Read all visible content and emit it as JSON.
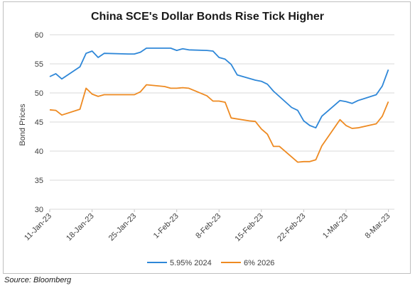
{
  "source_note": "Source: Bloomberg",
  "chart_data": {
    "type": "line",
    "title": "China SCE's Dollar Bonds Rise Tick Higher",
    "ylabel": "Bond Prices",
    "xlabel": "",
    "ylim": [
      30,
      60
    ],
    "yticks": [
      30,
      35,
      40,
      45,
      50,
      55,
      60
    ],
    "xlim": [
      "2023-01-11",
      "2023-03-09"
    ],
    "xticks": [
      {
        "date": "2023-01-11",
        "label": "11-Jan-23"
      },
      {
        "date": "2023-01-18",
        "label": "18-Jan-23"
      },
      {
        "date": "2023-01-25",
        "label": "25-Jan-23"
      },
      {
        "date": "2023-02-01",
        "label": "1-Feb-23"
      },
      {
        "date": "2023-02-08",
        "label": "8-Feb-23"
      },
      {
        "date": "2023-02-15",
        "label": "15-Feb-23"
      },
      {
        "date": "2023-02-22",
        "label": "22-Feb-23"
      },
      {
        "date": "2023-03-01",
        "label": "1-Mar-23"
      },
      {
        "date": "2023-03-08",
        "label": "8-Mar-23"
      }
    ],
    "grid": true,
    "legend_position": "bottom",
    "series": [
      {
        "name": "5.95% 2024",
        "color": "#2e87d8",
        "points": [
          [
            "2023-01-11",
            52.8
          ],
          [
            "2023-01-12",
            53.3
          ],
          [
            "2023-01-13",
            52.4
          ],
          [
            "2023-01-16",
            54.5
          ],
          [
            "2023-01-17",
            56.8
          ],
          [
            "2023-01-18",
            57.2
          ],
          [
            "2023-01-19",
            56.1
          ],
          [
            "2023-01-20",
            56.8
          ],
          [
            "2023-01-24",
            56.7
          ],
          [
            "2023-01-25",
            56.7
          ],
          [
            "2023-01-26",
            57.0
          ],
          [
            "2023-01-27",
            57.7
          ],
          [
            "2023-01-30",
            57.7
          ],
          [
            "2023-01-31",
            57.7
          ],
          [
            "2023-02-01",
            57.3
          ],
          [
            "2023-02-02",
            57.6
          ],
          [
            "2023-02-03",
            57.4
          ],
          [
            "2023-02-06",
            57.3
          ],
          [
            "2023-02-07",
            57.2
          ],
          [
            "2023-02-08",
            56.1
          ],
          [
            "2023-02-09",
            55.8
          ],
          [
            "2023-02-10",
            54.9
          ],
          [
            "2023-02-11",
            53.1
          ],
          [
            "2023-02-14",
            52.2
          ],
          [
            "2023-02-15",
            52.0
          ],
          [
            "2023-02-16",
            51.5
          ],
          [
            "2023-02-17",
            50.3
          ],
          [
            "2023-02-20",
            47.5
          ],
          [
            "2023-02-21",
            47.0
          ],
          [
            "2023-02-22",
            45.2
          ],
          [
            "2023-02-23",
            44.4
          ],
          [
            "2023-02-24",
            44.0
          ],
          [
            "2023-02-25",
            46.0
          ],
          [
            "2023-02-28",
            48.7
          ],
          [
            "2023-03-01",
            48.5
          ],
          [
            "2023-03-02",
            48.2
          ],
          [
            "2023-03-03",
            48.7
          ],
          [
            "2023-03-06",
            49.7
          ],
          [
            "2023-03-07",
            51.2
          ],
          [
            "2023-03-08",
            54.0
          ]
        ]
      },
      {
        "name": "6% 2026",
        "color": "#ee8a21",
        "points": [
          [
            "2023-01-11",
            47.1
          ],
          [
            "2023-01-12",
            47.0
          ],
          [
            "2023-01-13",
            46.2
          ],
          [
            "2023-01-16",
            47.2
          ],
          [
            "2023-01-17",
            50.8
          ],
          [
            "2023-01-18",
            49.8
          ],
          [
            "2023-01-19",
            49.4
          ],
          [
            "2023-01-20",
            49.7
          ],
          [
            "2023-01-24",
            49.7
          ],
          [
            "2023-01-25",
            49.7
          ],
          [
            "2023-01-26",
            50.2
          ],
          [
            "2023-01-27",
            51.4
          ],
          [
            "2023-01-30",
            51.1
          ],
          [
            "2023-01-31",
            50.8
          ],
          [
            "2023-02-01",
            50.8
          ],
          [
            "2023-02-02",
            50.9
          ],
          [
            "2023-02-03",
            50.8
          ],
          [
            "2023-02-06",
            49.5
          ],
          [
            "2023-02-07",
            48.6
          ],
          [
            "2023-02-08",
            48.6
          ],
          [
            "2023-02-09",
            48.4
          ],
          [
            "2023-02-10",
            45.7
          ],
          [
            "2023-02-13",
            45.2
          ],
          [
            "2023-02-14",
            45.1
          ],
          [
            "2023-02-15",
            43.8
          ],
          [
            "2023-02-16",
            42.9
          ],
          [
            "2023-02-17",
            40.8
          ],
          [
            "2023-02-18",
            40.8
          ],
          [
            "2023-02-21",
            38.1
          ],
          [
            "2023-02-22",
            38.2
          ],
          [
            "2023-02-23",
            38.2
          ],
          [
            "2023-02-24",
            38.5
          ],
          [
            "2023-02-25",
            40.9
          ],
          [
            "2023-02-28",
            45.4
          ],
          [
            "2023-03-01",
            44.4
          ],
          [
            "2023-03-02",
            43.9
          ],
          [
            "2023-03-03",
            44.0
          ],
          [
            "2023-03-06",
            44.7
          ],
          [
            "2023-03-07",
            46.0
          ],
          [
            "2023-03-08",
            48.5
          ]
        ]
      }
    ]
  }
}
